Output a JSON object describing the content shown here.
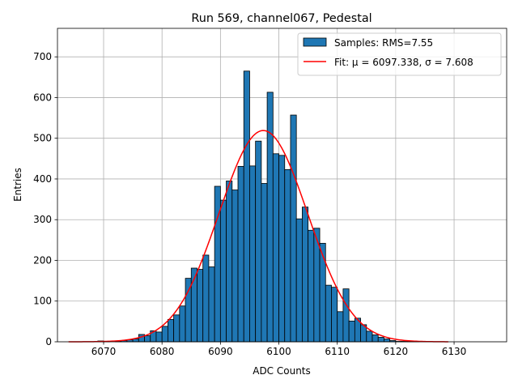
{
  "chart_data": {
    "type": "bar",
    "title": "Run 569, channel067, Pedestal",
    "xlabel": "ADC Counts",
    "ylabel": "Entries",
    "xlim": [
      6062.1,
      6139.0
    ],
    "ylim": [
      0,
      770
    ],
    "xticks": [
      6070,
      6080,
      6090,
      6100,
      6110,
      6120,
      6130
    ],
    "yticks": [
      0,
      100,
      200,
      300,
      400,
      500,
      600,
      700
    ],
    "grid": true,
    "legend_position": "top-right",
    "colors": {
      "bars": "#1f77b4",
      "bar_edge": "#000000",
      "fit": "#ff0000",
      "grid": "#b0b0b0"
    },
    "bin_width": 1,
    "bins_start": 6064,
    "series": [
      {
        "name": "Samples: RMS=7.55",
        "kind": "histogram",
        "values": [
          0,
          0,
          0,
          0,
          0,
          2,
          1,
          0,
          2,
          3,
          5,
          7,
          18,
          15,
          27,
          24,
          38,
          55,
          66,
          88,
          156,
          181,
          178,
          213,
          184,
          382,
          348,
          395,
          373,
          431,
          665,
          432,
          493,
          389,
          613,
          462,
          458,
          423,
          557,
          302,
          331,
          274,
          279,
          242,
          139,
          134,
          74,
          130,
          51,
          58,
          42,
          26,
          17,
          11,
          7,
          3,
          1,
          1,
          1,
          1,
          0,
          0,
          0,
          0,
          0,
          0
        ]
      },
      {
        "name": "Fit: μ = 6097.338, σ = 7.608",
        "kind": "gaussian",
        "mu": 6097.338,
        "sigma": 7.608,
        "amplitude": 519,
        "x_range": [
          6064,
          6129
        ]
      }
    ]
  }
}
